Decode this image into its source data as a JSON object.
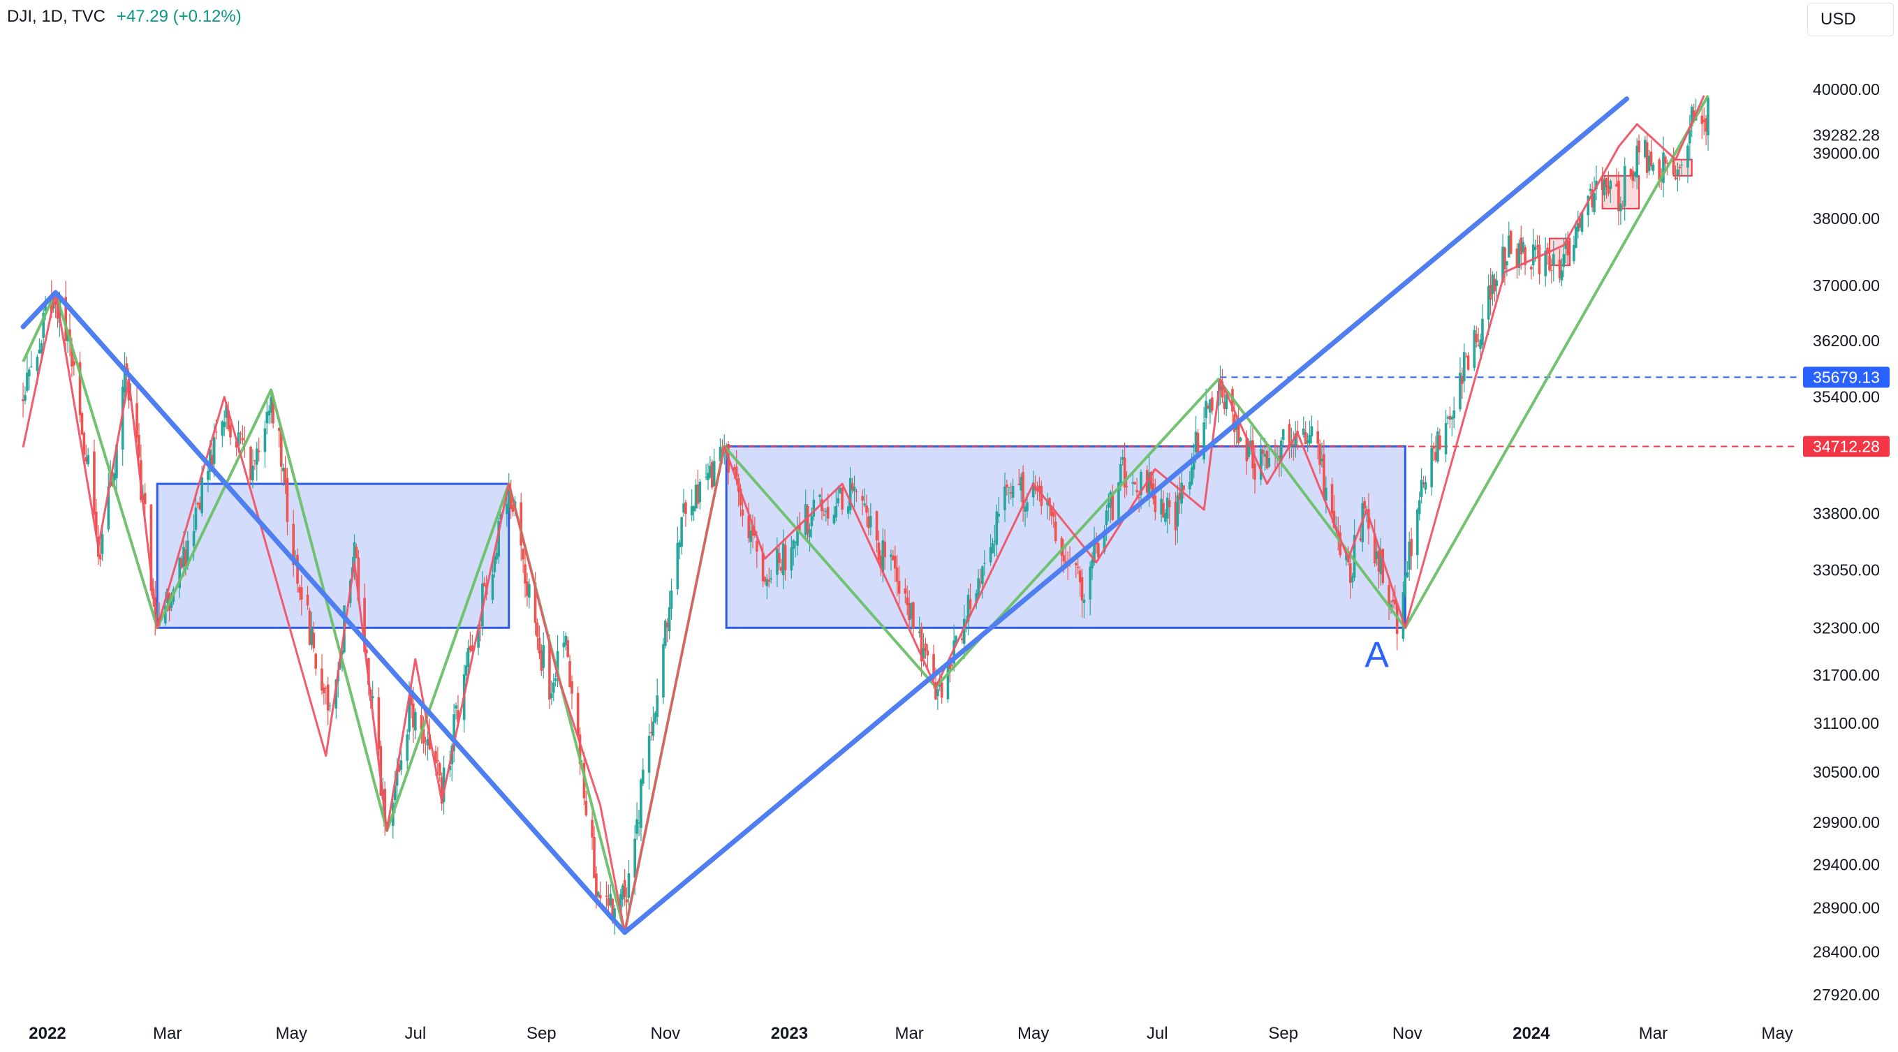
{
  "header": {
    "symbol": "DJI, 1D, TVC",
    "change": "+47.29 (+0.12%)"
  },
  "currency_button": {
    "label": "USD"
  },
  "colors": {
    "up": "#26a69a",
    "down": "#ef5350",
    "swing_red": "#f05366",
    "swing_green": "#6abf69",
    "trend_blue": "#4f7ef0",
    "box_fill": "rgba(80,120,240,0.25)",
    "box_stroke": "#2d5ae6",
    "level_blue": "#2962ff",
    "level_red": "#f23645"
  },
  "chart_data": {
    "type": "candlestick",
    "symbol": "DJI",
    "interval": "1D",
    "source": "TVC",
    "ylim": [
      27920,
      40000
    ],
    "y_scale": "log",
    "xlim": [
      "2022-01-01",
      "2024-05-01"
    ],
    "y_ticks": [
      "40000.00",
      "39282.28",
      "39000.00",
      "38000.00",
      "37000.00",
      "36200.00",
      "35679.13",
      "35400.00",
      "34712.28",
      "33800.00",
      "33050.00",
      "32300.00",
      "31700.00",
      "31100.00",
      "30500.00",
      "29900.00",
      "29400.00",
      "28900.00",
      "28400.00",
      "27920.00"
    ],
    "x_ticks": [
      {
        "label": "2022",
        "date": "2022-01-01",
        "bold": true
      },
      {
        "label": "Mar",
        "date": "2022-03-01"
      },
      {
        "label": "May",
        "date": "2022-05-01"
      },
      {
        "label": "Jul",
        "date": "2022-07-01"
      },
      {
        "label": "Sep",
        "date": "2022-09-01"
      },
      {
        "label": "Nov",
        "date": "2022-11-01"
      },
      {
        "label": "2023",
        "date": "2023-01-01",
        "bold": true
      },
      {
        "label": "Mar",
        "date": "2023-03-01"
      },
      {
        "label": "May",
        "date": "2023-05-01"
      },
      {
        "label": "Jul",
        "date": "2023-07-01"
      },
      {
        "label": "Sep",
        "date": "2023-09-01"
      },
      {
        "label": "Nov",
        "date": "2023-11-01"
      },
      {
        "label": "2024",
        "date": "2024-01-01",
        "bold": true
      },
      {
        "label": "Mar",
        "date": "2024-03-01"
      },
      {
        "label": "May",
        "date": "2024-05-01"
      }
    ],
    "price_path": [
      [
        "2021-12-20",
        35300
      ],
      [
        "2022-01-04",
        36950
      ],
      [
        "2022-01-13",
        36100
      ],
      [
        "2022-01-27",
        33200
      ],
      [
        "2022-02-09",
        35800
      ],
      [
        "2022-02-24",
        32300
      ],
      [
        "2022-03-10",
        33300
      ],
      [
        "2022-03-29",
        35300
      ],
      [
        "2022-04-12",
        34300
      ],
      [
        "2022-04-21",
        35500
      ],
      [
        "2022-05-03",
        33000
      ],
      [
        "2022-05-20",
        31300
      ],
      [
        "2022-06-01",
        33200
      ],
      [
        "2022-06-17",
        29700
      ],
      [
        "2022-06-28",
        31300
      ],
      [
        "2022-07-14",
        30300
      ],
      [
        "2022-08-16",
        34150
      ],
      [
        "2022-09-06",
        31300
      ],
      [
        "2022-09-12",
        32300
      ],
      [
        "2022-09-30",
        28800
      ],
      [
        "2022-10-13",
        29100
      ],
      [
        "2022-11-10",
        33700
      ],
      [
        "2022-12-01",
        34700
      ],
      [
        "2022-12-20",
        32900
      ],
      [
        "2023-01-12",
        33800
      ],
      [
        "2023-02-01",
        34100
      ],
      [
        "2023-02-24",
        32800
      ],
      [
        "2023-03-15",
        31450
      ],
      [
        "2023-04-18",
        34000
      ],
      [
        "2023-05-01",
        34100
      ],
      [
        "2023-05-25",
        32800
      ],
      [
        "2023-06-15",
        34400
      ],
      [
        "2023-07-10",
        33800
      ],
      [
        "2023-07-31",
        35600
      ],
      [
        "2023-08-18",
        34500
      ],
      [
        "2023-09-01",
        34800
      ],
      [
        "2023-09-14",
        34900
      ],
      [
        "2023-10-03",
        33000
      ],
      [
        "2023-10-11",
        33800
      ],
      [
        "2023-10-27",
        32400
      ],
      [
        "2023-11-08",
        34100
      ],
      [
        "2023-11-30",
        35900
      ],
      [
        "2023-12-19",
        37500
      ],
      [
        "2024-01-17",
        37350
      ],
      [
        "2024-02-01",
        38400
      ],
      [
        "2024-02-13",
        38300
      ],
      [
        "2024-02-22",
        39000
      ],
      [
        "2024-03-07",
        38700
      ],
      [
        "2024-03-15",
        38800
      ],
      [
        "2024-03-21",
        39600
      ],
      [
        "2024-03-26",
        39300
      ],
      [
        "2024-03-28",
        39800
      ]
    ],
    "levels": [
      {
        "label": "35679.13",
        "price": 35679.13,
        "color": "blue",
        "from": "2023-08-01"
      },
      {
        "label": "34712.28",
        "price": 34712.28,
        "color": "red",
        "from": "2022-12-01"
      }
    ],
    "annotations": [
      {
        "text": "A",
        "date": "2023-10-17",
        "price": 31800
      }
    ],
    "drawings": {
      "rectangles": [
        {
          "from": [
            "2022-02-24",
            34200
          ],
          "to": [
            "2022-08-16",
            32300
          ],
          "style": "box"
        },
        {
          "from": [
            "2022-12-01",
            34712
          ],
          "to": [
            "2023-10-31",
            32300
          ],
          "style": "box"
        },
        {
          "from": [
            "2024-01-10",
            37700
          ],
          "to": [
            "2024-01-20",
            37300
          ],
          "style": "small"
        },
        {
          "from": [
            "2024-02-05",
            38650
          ],
          "to": [
            "2024-02-23",
            38150
          ],
          "style": "small"
        },
        {
          "from": [
            "2024-03-11",
            38900
          ],
          "to": [
            "2024-03-20",
            38650
          ],
          "style": "small"
        }
      ],
      "trend_lines": [
        [
          [
            "2021-12-20",
            36400
          ],
          [
            "2022-01-05",
            36900
          ],
          [
            "2022-10-12",
            28620
          ]
        ],
        [
          [
            "2022-10-12",
            28620
          ],
          [
            "2024-02-17",
            39850
          ]
        ]
      ],
      "swing_green": [
        [
          "2021-12-20",
          35900
        ],
        [
          "2022-01-05",
          36900
        ],
        [
          "2022-02-24",
          32300
        ],
        [
          "2022-04-21",
          35500
        ],
        [
          "2022-06-17",
          29800
        ],
        [
          "2022-08-16",
          34200
        ],
        [
          "2022-10-12",
          28620
        ],
        [
          "2022-11-30",
          34712
        ],
        [
          "2023-03-14",
          31550
        ],
        [
          "2023-07-31",
          35650
        ],
        [
          "2023-10-31",
          32300
        ],
        [
          "2024-03-28",
          39900
        ]
      ],
      "swing_red": [
        [
          "2021-12-20",
          34700
        ],
        [
          "2022-01-05",
          36900
        ],
        [
          "2022-01-26",
          33350
        ],
        [
          "2022-02-10",
          35650
        ],
        [
          "2022-02-24",
          32300
        ],
        [
          "2022-03-29",
          35400
        ],
        [
          "2022-05-18",
          30700
        ],
        [
          "2022-06-01",
          33150
        ],
        [
          "2022-06-17",
          29800
        ],
        [
          "2022-07-01",
          31900
        ],
        [
          "2022-07-14",
          30150
        ],
        [
          "2022-08-16",
          34200
        ],
        [
          "2022-09-09",
          31700
        ],
        [
          "2022-09-30",
          30100
        ],
        [
          "2022-10-12",
          28620
        ],
        [
          "2022-11-30",
          34712
        ],
        [
          "2022-12-20",
          33200
        ],
        [
          "2023-01-27",
          34200
        ],
        [
          "2023-03-14",
          31550
        ],
        [
          "2023-05-01",
          34200
        ],
        [
          "2023-06-01",
          33150
        ],
        [
          "2023-06-30",
          34400
        ],
        [
          "2023-07-24",
          33850
        ],
        [
          "2023-08-01",
          35650
        ],
        [
          "2023-08-24",
          34200
        ],
        [
          "2023-09-08",
          34900
        ],
        [
          "2023-10-03",
          33200
        ],
        [
          "2023-10-12",
          33850
        ],
        [
          "2023-10-31",
          32300
        ],
        [
          "2023-12-19",
          37200
        ],
        [
          "2024-01-17",
          37600
        ],
        [
          "2024-02-13",
          39100
        ],
        [
          "2024-02-22",
          39450
        ],
        [
          "2024-03-12",
          38900
        ],
        [
          "2024-03-26",
          39900
        ]
      ]
    }
  }
}
